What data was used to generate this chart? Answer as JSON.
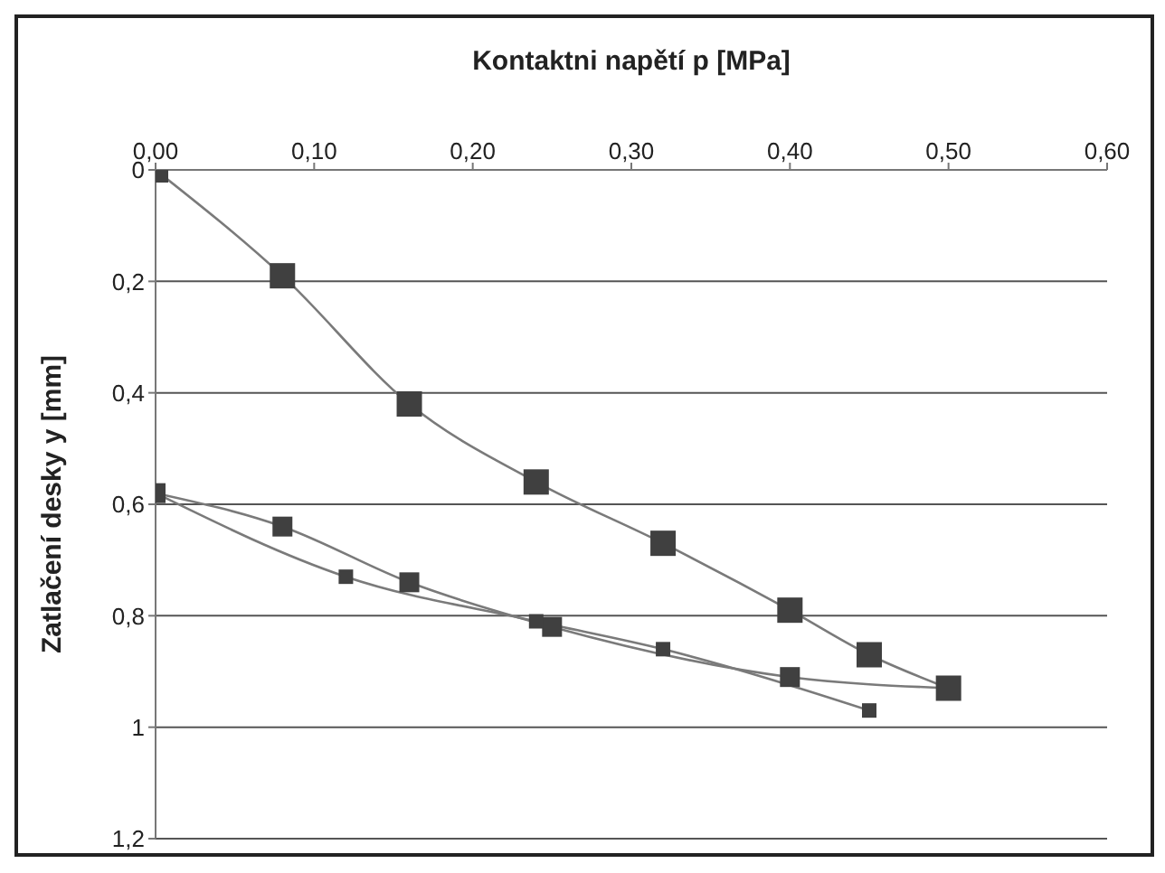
{
  "chart_data": {
    "type": "line",
    "xlabel": "Kontaktni napětí p [MPa]",
    "ylabel": "Zatlačení desky y [mm]",
    "xlim": [
      0,
      0.6
    ],
    "xticks": [
      {
        "value": 0,
        "label": "0,00"
      },
      {
        "value": 0.1,
        "label": "0,10"
      },
      {
        "value": 0.2,
        "label": "0,20"
      },
      {
        "value": 0.3,
        "label": "0,30"
      },
      {
        "value": 0.4,
        "label": "0,40"
      },
      {
        "value": 0.5,
        "label": "0,50"
      },
      {
        "value": 0.6,
        "label": "0,60"
      }
    ],
    "ylim": [
      1.2,
      0
    ],
    "yticks": [
      0,
      {
        "value": 0.2,
        "label": "0,2"
      },
      {
        "value": 0.4,
        "label": "0,4"
      },
      {
        "value": 0.6,
        "label": "0,6"
      },
      {
        "value": 0.8,
        "label": "0,8"
      },
      {
        "value": 1,
        "label": "1"
      },
      {
        "value": 1.2,
        "label": "1,2"
      }
    ],
    "grid": "y",
    "marker": "square",
    "line_style": "solid",
    "series": [
      {
        "color": "#404040",
        "x": [
          0,
          0.08,
          0.16,
          0.24,
          0.32,
          0.4,
          0.45,
          0.5
        ],
        "values": [
          0,
          0.19,
          0.42,
          0.56,
          0.67,
          0.79,
          0.87,
          0.93
        ]
      },
      {
        "color": "#404040",
        "x": [
          0,
          0.08,
          0.16,
          0.25,
          0.4,
          0.5
        ],
        "values": [
          0.58,
          0.64,
          0.74,
          0.82,
          0.91,
          0.93
        ]
      },
      {
        "color": "#404040",
        "x": [
          0,
          0.12,
          0.24,
          0.32,
          0.45
        ],
        "values": [
          0.58,
          0.73,
          0.81,
          0.86,
          0.97
        ]
      }
    ]
  }
}
